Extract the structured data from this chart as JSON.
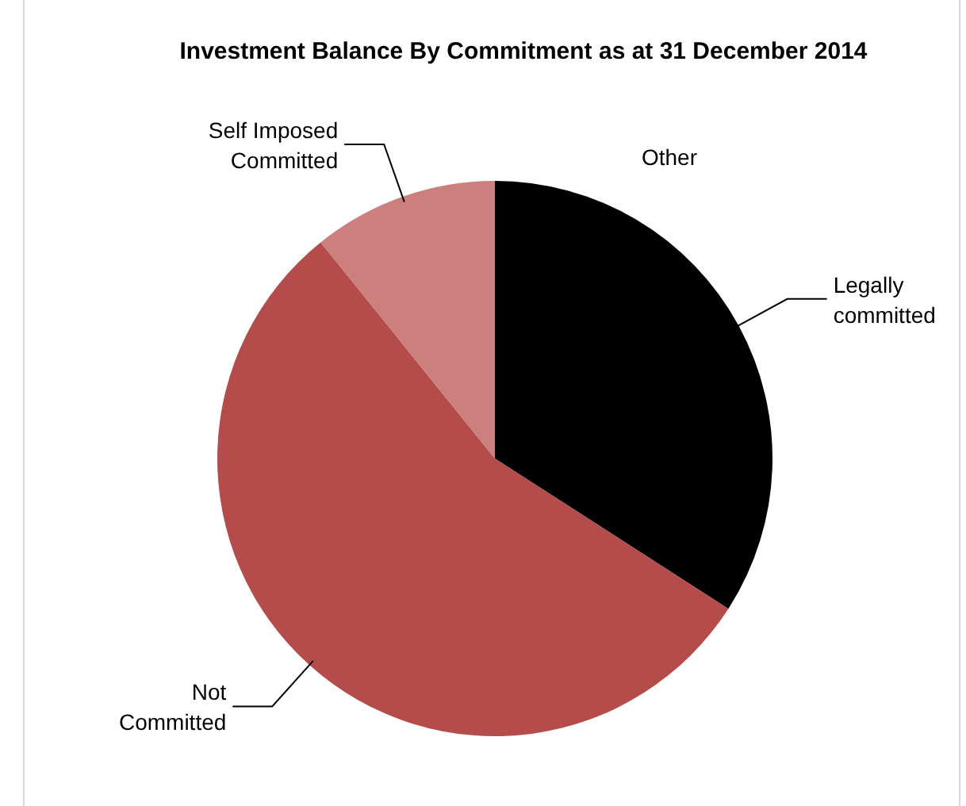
{
  "chart_data": {
    "type": "pie",
    "title": "Investment Balance By Commitment as at 31 December 2014",
    "categories": [
      "Other",
      "Legally committed",
      "Not Committed",
      "Self Imposed Committed"
    ],
    "values": [
      0,
      34.1,
      55.1,
      10.8
    ],
    "colors": [
      "#7f7f7f",
      "#000000",
      "#b34c4a",
      "#cc7f7d"
    ]
  }
}
